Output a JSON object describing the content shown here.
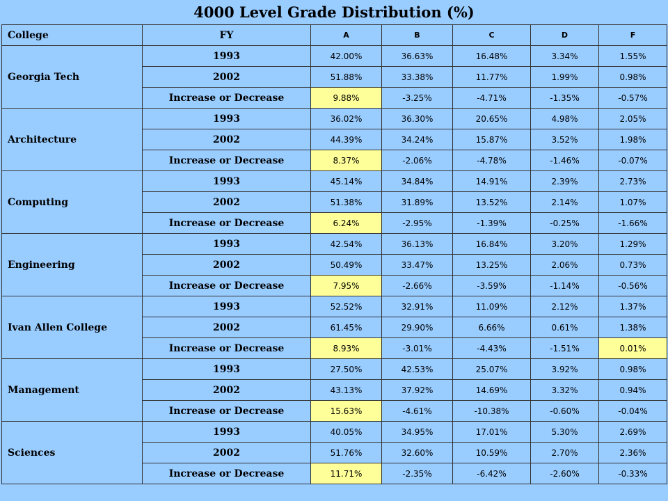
{
  "title": "4000 Level Grade Distribution (%)",
  "header": {
    "college": "College",
    "fy": "FY",
    "grades": [
      "A",
      "B",
      "C",
      "D",
      "F"
    ]
  },
  "highlight_color": "#ffff99",
  "background_color": "#99ccff",
  "colleges": [
    {
      "name": "Georgia Tech",
      "rows": [
        {
          "fy": "1993",
          "values": [
            "42.00%",
            "36.63%",
            "16.48%",
            "3.34%",
            "1.55%"
          ],
          "highlight": [
            false,
            false,
            false,
            false,
            false
          ]
        },
        {
          "fy": "2002",
          "values": [
            "51.88%",
            "33.38%",
            "11.77%",
            "1.99%",
            "0.98%"
          ],
          "highlight": [
            false,
            false,
            false,
            false,
            false
          ]
        },
        {
          "fy": "Increase or Decrease",
          "values": [
            "9.88%",
            "-3.25%",
            "-4.71%",
            "-1.35%",
            "-0.57%"
          ],
          "highlight": [
            true,
            false,
            false,
            false,
            false
          ]
        }
      ]
    },
    {
      "name": "Architecture",
      "rows": [
        {
          "fy": "1993",
          "values": [
            "36.02%",
            "36.30%",
            "20.65%",
            "4.98%",
            "2.05%"
          ],
          "highlight": [
            false,
            false,
            false,
            false,
            false
          ]
        },
        {
          "fy": "2002",
          "values": [
            "44.39%",
            "34.24%",
            "15.87%",
            "3.52%",
            "1.98%"
          ],
          "highlight": [
            false,
            false,
            false,
            false,
            false
          ]
        },
        {
          "fy": "Increase or Decrease",
          "values": [
            "8.37%",
            "-2.06%",
            "-4.78%",
            "-1.46%",
            "-0.07%"
          ],
          "highlight": [
            true,
            false,
            false,
            false,
            false
          ]
        }
      ]
    },
    {
      "name": "Computing",
      "rows": [
        {
          "fy": "1993",
          "values": [
            "45.14%",
            "34.84%",
            "14.91%",
            "2.39%",
            "2.73%"
          ],
          "highlight": [
            false,
            false,
            false,
            false,
            false
          ]
        },
        {
          "fy": "2002",
          "values": [
            "51.38%",
            "31.89%",
            "13.52%",
            "2.14%",
            "1.07%"
          ],
          "highlight": [
            false,
            false,
            false,
            false,
            false
          ]
        },
        {
          "fy": "Increase or Decrease",
          "values": [
            "6.24%",
            "-2.95%",
            "-1.39%",
            "-0.25%",
            "-1.66%"
          ],
          "highlight": [
            true,
            false,
            false,
            false,
            false
          ]
        }
      ]
    },
    {
      "name": "Engineering",
      "rows": [
        {
          "fy": "1993",
          "values": [
            "42.54%",
            "36.13%",
            "16.84%",
            "3.20%",
            "1.29%"
          ],
          "highlight": [
            false,
            false,
            false,
            false,
            false
          ]
        },
        {
          "fy": "2002",
          "values": [
            "50.49%",
            "33.47%",
            "13.25%",
            "2.06%",
            "0.73%"
          ],
          "highlight": [
            false,
            false,
            false,
            false,
            false
          ]
        },
        {
          "fy": "Increase or Decrease",
          "values": [
            "7.95%",
            "-2.66%",
            "-3.59%",
            "-1.14%",
            "-0.56%"
          ],
          "highlight": [
            true,
            false,
            false,
            false,
            false
          ]
        }
      ]
    },
    {
      "name": "Ivan Allen College",
      "rows": [
        {
          "fy": "1993",
          "values": [
            "52.52%",
            "32.91%",
            "11.09%",
            "2.12%",
            "1.37%"
          ],
          "highlight": [
            false,
            false,
            false,
            false,
            false
          ]
        },
        {
          "fy": "2002",
          "values": [
            "61.45%",
            "29.90%",
            "6.66%",
            "0.61%",
            "1.38%"
          ],
          "highlight": [
            false,
            false,
            false,
            false,
            false
          ]
        },
        {
          "fy": "Increase or Decrease",
          "values": [
            "8.93%",
            "-3.01%",
            "-4.43%",
            "-1.51%",
            "0.01%"
          ],
          "highlight": [
            true,
            false,
            false,
            false,
            true
          ]
        }
      ]
    },
    {
      "name": "Management",
      "rows": [
        {
          "fy": "1993",
          "values": [
            "27.50%",
            "42.53%",
            "25.07%",
            "3.92%",
            "0.98%"
          ],
          "highlight": [
            false,
            false,
            false,
            false,
            false
          ]
        },
        {
          "fy": "2002",
          "values": [
            "43.13%",
            "37.92%",
            "14.69%",
            "3.32%",
            "0.94%"
          ],
          "highlight": [
            false,
            false,
            false,
            false,
            false
          ]
        },
        {
          "fy": "Increase or Decrease",
          "values": [
            "15.63%",
            "-4.61%",
            "-10.38%",
            "-0.60%",
            "-0.04%"
          ],
          "highlight": [
            true,
            false,
            false,
            false,
            false
          ]
        }
      ]
    },
    {
      "name": "Sciences",
      "rows": [
        {
          "fy": "1993",
          "values": [
            "40.05%",
            "34.95%",
            "17.01%",
            "5.30%",
            "2.69%"
          ],
          "highlight": [
            false,
            false,
            false,
            false,
            false
          ]
        },
        {
          "fy": "2002",
          "values": [
            "51.76%",
            "32.60%",
            "10.59%",
            "2.70%",
            "2.36%"
          ],
          "highlight": [
            false,
            false,
            false,
            false,
            false
          ]
        },
        {
          "fy": "Increase or Decrease",
          "values": [
            "11.71%",
            "-2.35%",
            "-6.42%",
            "-2.60%",
            "-0.33%"
          ],
          "highlight": [
            true,
            false,
            false,
            false,
            false
          ]
        }
      ]
    }
  ]
}
